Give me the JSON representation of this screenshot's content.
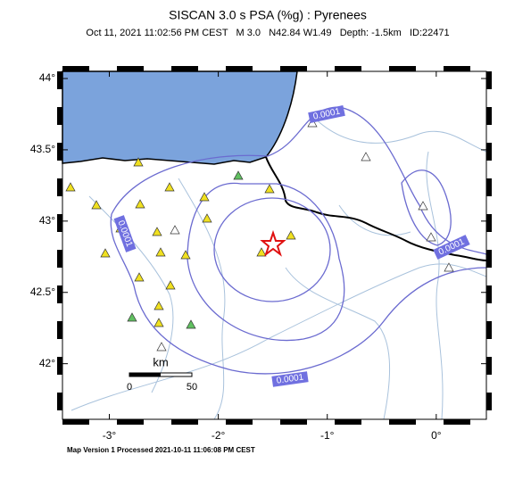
{
  "header": {
    "title": "SISCAN 3.0 s PSA (%g) : Pyrenees",
    "subtitle": "Oct 11, 2021 11:02:56 PM CEST   M 3.0   N42.84 W1.49   Depth: -1.5km   ID:22471"
  },
  "map": {
    "lonlim": [
      -3.43,
      0.46
    ],
    "latlim": [
      41.61,
      44.05
    ],
    "lat_ticks": [
      {
        "value": 44,
        "label": "44°"
      },
      {
        "value": 43.5,
        "label": "43.5°"
      },
      {
        "value": 43,
        "label": "43°"
      },
      {
        "value": 42.5,
        "label": "42.5°"
      },
      {
        "value": 42,
        "label": "42°"
      }
    ],
    "lon_ticks": [
      {
        "value": -3,
        "label": "-3°"
      },
      {
        "value": -2,
        "label": "-2°"
      },
      {
        "value": -1,
        "label": "-1°"
      },
      {
        "value": 0,
        "label": "0°"
      }
    ],
    "contour_labels": [
      "0.0001",
      "0.0001",
      "0.0001",
      "0.0001"
    ],
    "scale": {
      "unit": "km",
      "start": "0",
      "end": "50"
    }
  },
  "footer": "Map Version 1 Processed 2021-10-11 11:06:08 PM CEST"
}
